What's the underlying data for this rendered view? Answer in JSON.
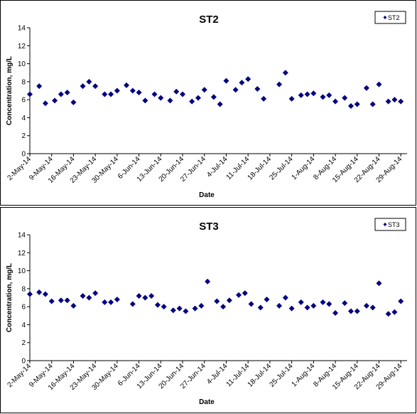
{
  "chart_data": [
    {
      "type": "scatter",
      "title": "ST2",
      "xlabel": "Date",
      "ylabel": "Concentration, mg/L",
      "ylim": [
        0,
        14
      ],
      "yticks": [
        0,
        2,
        4,
        6,
        8,
        10,
        12,
        14
      ],
      "xticks": [
        "2-May-14",
        "9-May-14",
        "16-May-14",
        "23-May-14",
        "30-May-14",
        "6-Jun-14",
        "13-Jun-14",
        "20-Jun-14",
        "27-Jun-14",
        "4-Jul-14",
        "11-Jul-14",
        "18-Jul-14",
        "25-Jul-14",
        "1-Aug-14",
        "8-Aug-14",
        "15-Aug-14",
        "22-Aug-14",
        "29-Aug-14"
      ],
      "xlim": [
        "2014-05-02",
        "2014-08-31"
      ],
      "legend_position": "top-right",
      "marker_color": "#000080",
      "series": [
        {
          "name": "ST2",
          "x": [
            "2014-05-02",
            "2014-05-05",
            "2014-05-07",
            "2014-05-10",
            "2014-05-12",
            "2014-05-14",
            "2014-05-16",
            "2014-05-19",
            "2014-05-21",
            "2014-05-23",
            "2014-05-26",
            "2014-05-28",
            "2014-05-30",
            "2014-06-02",
            "2014-06-04",
            "2014-06-06",
            "2014-06-08",
            "2014-06-11",
            "2014-06-13",
            "2014-06-16",
            "2014-06-18",
            "2014-06-20",
            "2014-06-23",
            "2014-06-25",
            "2014-06-27",
            "2014-06-30",
            "2014-07-02",
            "2014-07-04",
            "2014-07-07",
            "2014-07-09",
            "2014-07-11",
            "2014-07-14",
            "2014-07-16",
            "2014-07-21",
            "2014-07-23",
            "2014-07-25",
            "2014-07-28",
            "2014-07-30",
            "2014-08-01",
            "2014-08-04",
            "2014-08-06",
            "2014-08-08",
            "2014-08-11",
            "2014-08-13",
            "2014-08-15",
            "2014-08-18",
            "2014-08-20",
            "2014-08-22",
            "2014-08-25",
            "2014-08-27",
            "2014-08-29"
          ],
          "y": [
            6.6,
            7.5,
            5.6,
            5.9,
            6.6,
            6.8,
            5.7,
            7.5,
            8.0,
            7.5,
            6.6,
            6.6,
            7.0,
            7.6,
            7.0,
            6.8,
            5.9,
            6.6,
            6.2,
            5.9,
            6.9,
            6.6,
            5.8,
            6.2,
            7.1,
            6.3,
            5.5,
            8.1,
            7.1,
            7.9,
            8.3,
            7.2,
            6.1,
            7.7,
            9.0,
            6.1,
            6.5,
            6.6,
            6.7,
            6.3,
            6.5,
            5.8,
            6.2,
            5.3,
            5.5,
            7.3,
            5.5,
            7.7,
            5.8,
            6.0,
            5.8
          ]
        }
      ]
    },
    {
      "type": "scatter",
      "title": "ST3",
      "xlabel": "Date",
      "ylabel": "Concentration, mg/L",
      "ylim": [
        0,
        14
      ],
      "yticks": [
        0,
        2,
        4,
        6,
        8,
        10,
        12,
        14
      ],
      "xticks": [
        "2-May-14",
        "9-May-14",
        "16-May-14",
        "23-May-14",
        "30-May-14",
        "6-Jun-14",
        "13-Jun-14",
        "20-Jun-14",
        "27-Jun-14",
        "4-Jul-14",
        "11-Jul-14",
        "18-Jul-14",
        "25-Jul-14",
        "1-Aug-14",
        "8-Aug-14",
        "15-Aug-14",
        "22-Aug-14",
        "29-Aug-14"
      ],
      "xlim": [
        "2014-05-02",
        "2014-08-31"
      ],
      "legend_position": "top-right",
      "marker_color": "#000080",
      "series": [
        {
          "name": "ST3",
          "x": [
            "2014-05-02",
            "2014-05-05",
            "2014-05-07",
            "2014-05-09",
            "2014-05-12",
            "2014-05-14",
            "2014-05-16",
            "2014-05-19",
            "2014-05-21",
            "2014-05-23",
            "2014-05-26",
            "2014-05-28",
            "2014-05-30",
            "2014-06-04",
            "2014-06-06",
            "2014-06-08",
            "2014-06-10",
            "2014-06-12",
            "2014-06-14",
            "2014-06-17",
            "2014-06-19",
            "2014-06-21",
            "2014-06-24",
            "2014-06-26",
            "2014-06-28",
            "2014-07-01",
            "2014-07-03",
            "2014-07-05",
            "2014-07-08",
            "2014-07-10",
            "2014-07-12",
            "2014-07-15",
            "2014-07-17",
            "2014-07-21",
            "2014-07-23",
            "2014-07-25",
            "2014-07-28",
            "2014-07-30",
            "2014-08-01",
            "2014-08-04",
            "2014-08-06",
            "2014-08-08",
            "2014-08-11",
            "2014-08-13",
            "2014-08-15",
            "2014-08-18",
            "2014-08-20",
            "2014-08-22",
            "2014-08-25",
            "2014-08-27",
            "2014-08-29"
          ],
          "y": [
            7.4,
            7.6,
            7.4,
            6.6,
            6.7,
            6.7,
            6.1,
            7.2,
            7.0,
            7.5,
            6.5,
            6.5,
            6.8,
            6.3,
            7.2,
            7.0,
            7.2,
            6.2,
            6.0,
            5.6,
            5.8,
            5.5,
            5.8,
            6.1,
            8.8,
            6.6,
            6.0,
            6.7,
            7.3,
            7.5,
            6.3,
            5.9,
            6.8,
            6.1,
            7.0,
            5.8,
            6.5,
            5.9,
            6.1,
            6.5,
            6.3,
            5.3,
            6.4,
            5.5,
            5.5,
            6.1,
            5.9,
            8.6,
            5.2,
            5.4,
            6.6
          ]
        }
      ]
    }
  ]
}
